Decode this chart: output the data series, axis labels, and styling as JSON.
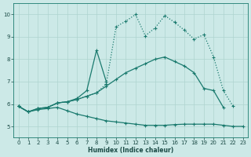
{
  "xlabel": "Humidex (Indice chaleur)",
  "bg_color": "#cce9e7",
  "line_color": "#1a7a6e",
  "grid_color": "#aed4d0",
  "xlim": [
    -0.5,
    23.5
  ],
  "ylim": [
    4.5,
    10.5
  ],
  "xticks": [
    0,
    1,
    2,
    3,
    4,
    5,
    6,
    7,
    8,
    9,
    10,
    11,
    12,
    13,
    14,
    15,
    16,
    17,
    18,
    19,
    20,
    21,
    22,
    23
  ],
  "yticks": [
    5,
    6,
    7,
    8,
    9,
    10
  ],
  "lines": [
    {
      "x": [
        0,
        1,
        2,
        3,
        4,
        5,
        6,
        7,
        8,
        9,
        10,
        11,
        12,
        13,
        14,
        15,
        16,
        17,
        18,
        19,
        20,
        21,
        22
      ],
      "y": [
        5.9,
        5.65,
        5.8,
        5.85,
        6.05,
        6.1,
        6.2,
        6.35,
        6.5,
        6.9,
        9.45,
        9.7,
        10.0,
        9.05,
        9.4,
        9.95,
        9.65,
        9.3,
        8.9,
        9.1,
        8.1,
        6.6,
        5.9
      ],
      "linestyle": "dotted",
      "marker": "+"
    },
    {
      "x": [
        0,
        1,
        2,
        3,
        4,
        5,
        6,
        7,
        8,
        9
      ],
      "y": [
        5.9,
        5.65,
        5.8,
        5.85,
        6.05,
        6.1,
        6.25,
        6.6,
        8.4,
        7.0
      ],
      "linestyle": "solid",
      "marker": "+"
    },
    {
      "x": [
        0,
        1,
        2,
        3,
        4,
        5,
        6,
        7,
        8,
        9,
        10,
        11,
        12,
        13,
        14,
        15,
        16,
        17,
        18,
        19,
        20,
        21
      ],
      "y": [
        5.9,
        5.65,
        5.8,
        5.85,
        6.05,
        6.1,
        6.2,
        6.35,
        6.5,
        6.8,
        7.1,
        7.4,
        7.6,
        7.8,
        8.0,
        8.1,
        7.9,
        7.7,
        7.4,
        6.7,
        6.6,
        5.85
      ],
      "linestyle": "solid",
      "marker": "+"
    },
    {
      "x": [
        0,
        1,
        2,
        3,
        4,
        5,
        6,
        7,
        8,
        9,
        10,
        11,
        12,
        13,
        14,
        15,
        16,
        17,
        18,
        19,
        20,
        21,
        22,
        23
      ],
      "y": [
        5.9,
        5.65,
        5.75,
        5.8,
        5.85,
        5.7,
        5.55,
        5.45,
        5.35,
        5.25,
        5.2,
        5.15,
        5.1,
        5.05,
        5.05,
        5.05,
        5.08,
        5.1,
        5.1,
        5.1,
        5.1,
        5.05,
        5.0,
        5.0
      ],
      "linestyle": "solid",
      "marker": "+"
    }
  ]
}
